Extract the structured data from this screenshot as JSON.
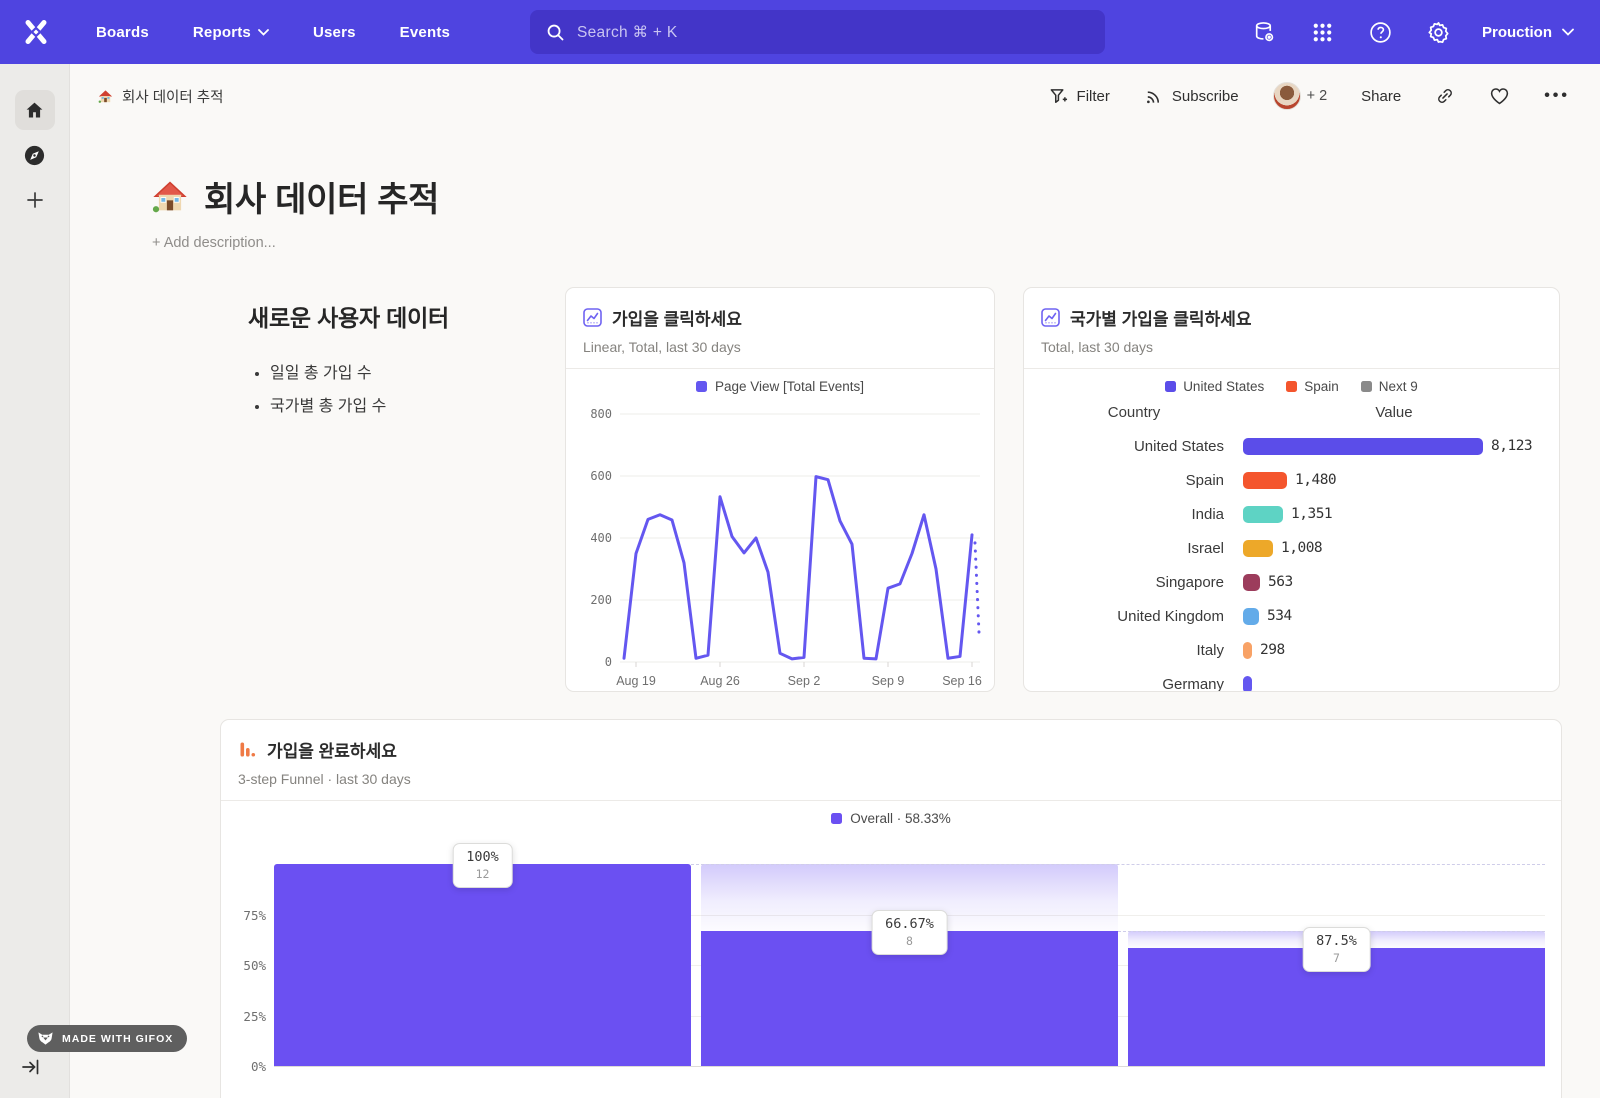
{
  "navbar": {
    "items": [
      "Boards",
      "Reports",
      "Users",
      "Events"
    ],
    "search": {
      "placeholder": "Search  ⌘ + K"
    },
    "project": "Prouction"
  },
  "toolbar": {
    "breadcrumb": "회사 데이터 추적",
    "filter_label": "Filter",
    "subscribe_label": "Subscribe",
    "extra_collaborators": "+ 2",
    "share_label": "Share"
  },
  "page": {
    "title": "회사 데이터 추적",
    "add_description": "+ Add description..."
  },
  "text_card": {
    "heading": "새로운 사용자 데이터",
    "bullets": [
      "일일 총 가입 수",
      "국가별 총 가입 수"
    ]
  },
  "line_card": {
    "title": "가입을 클릭하세요",
    "subtitle": "Linear, Total, last 30 days"
  },
  "bar_card": {
    "title": "국가별 가입을 클릭하세요",
    "subtitle": "Total, last 30 days",
    "legend": [
      {
        "label": "United States",
        "color": "#5b4de9"
      },
      {
        "label": "Spain",
        "color": "#f4552d"
      },
      {
        "label": "Next 9",
        "color": "#8a8a8a"
      }
    ]
  },
  "funnel_card": {
    "title": "가입을 완료하세요",
    "subtitle": "3-step Funnel · last 30 days",
    "legend": "Overall · 58.33%"
  },
  "badge": {
    "label": "MADE WITH GIFOX"
  },
  "chart_data": [
    {
      "id": "signups-line",
      "type": "line",
      "title": "가입을 클릭하세요",
      "series": [
        {
          "name": "Page View [Total Events]",
          "color": "#6457f0",
          "values": [
            12,
            350,
            460,
            475,
            458,
            320,
            12,
            22,
            533,
            405,
            352,
            400,
            290,
            28,
            10,
            15,
            598,
            588,
            455,
            380,
            12,
            10,
            238,
            252,
            350,
            475,
            300,
            12,
            18,
            410
          ]
        }
      ],
      "x_tick_labels": [
        "Aug 19",
        "Aug 26",
        "Sep 2",
        "Sep 9",
        "Sep 16"
      ],
      "x_tick_indices": [
        1,
        8,
        15,
        22,
        29
      ],
      "ylim": [
        0,
        800
      ],
      "y_ticks": [
        0,
        200,
        400,
        600,
        800
      ],
      "grid": "horizontal",
      "legend_position": "top",
      "incomplete_tail": true
    },
    {
      "id": "signups-by-country",
      "type": "bar",
      "orientation": "horizontal",
      "title": "국가별 가입을 클릭하세요",
      "columns": [
        "Country",
        "Value"
      ],
      "rows": [
        {
          "label": "United States",
          "value": 8123,
          "display": "8,123",
          "color": "#5b4de9"
        },
        {
          "label": "Spain",
          "value": 1480,
          "display": "1,480",
          "color": "#f4552d"
        },
        {
          "label": "India",
          "value": 1351,
          "display": "1,351",
          "color": "#5ed3c4"
        },
        {
          "label": "Israel",
          "value": 1008,
          "display": "1,008",
          "color": "#eda829"
        },
        {
          "label": "Singapore",
          "value": 563,
          "display": "563",
          "color": "#9c3c5c"
        },
        {
          "label": "United Kingdom",
          "value": 534,
          "display": "534",
          "color": "#63abe9"
        },
        {
          "label": "Italy",
          "value": 298,
          "display": "298",
          "color": "#f8a266"
        },
        {
          "label": "Germany",
          "value": null,
          "display": "",
          "color": "#6457f0",
          "clipped": true
        }
      ]
    },
    {
      "id": "signup-funnel",
      "type": "funnel",
      "title": "가입을 완료하세요",
      "overall_label": "Overall · 58.33%",
      "bar_color": "#6b50f2",
      "y_ticks": [
        "0%",
        "25%",
        "50%",
        "75%"
      ],
      "steps": [
        {
          "conversion": "100%",
          "count": 12,
          "overall_fraction": 1
        },
        {
          "conversion": "66.67%",
          "count": 8,
          "overall_fraction": 0.6667
        },
        {
          "conversion": "87.5%",
          "count": 7,
          "overall_fraction": 0.5833
        }
      ]
    }
  ]
}
